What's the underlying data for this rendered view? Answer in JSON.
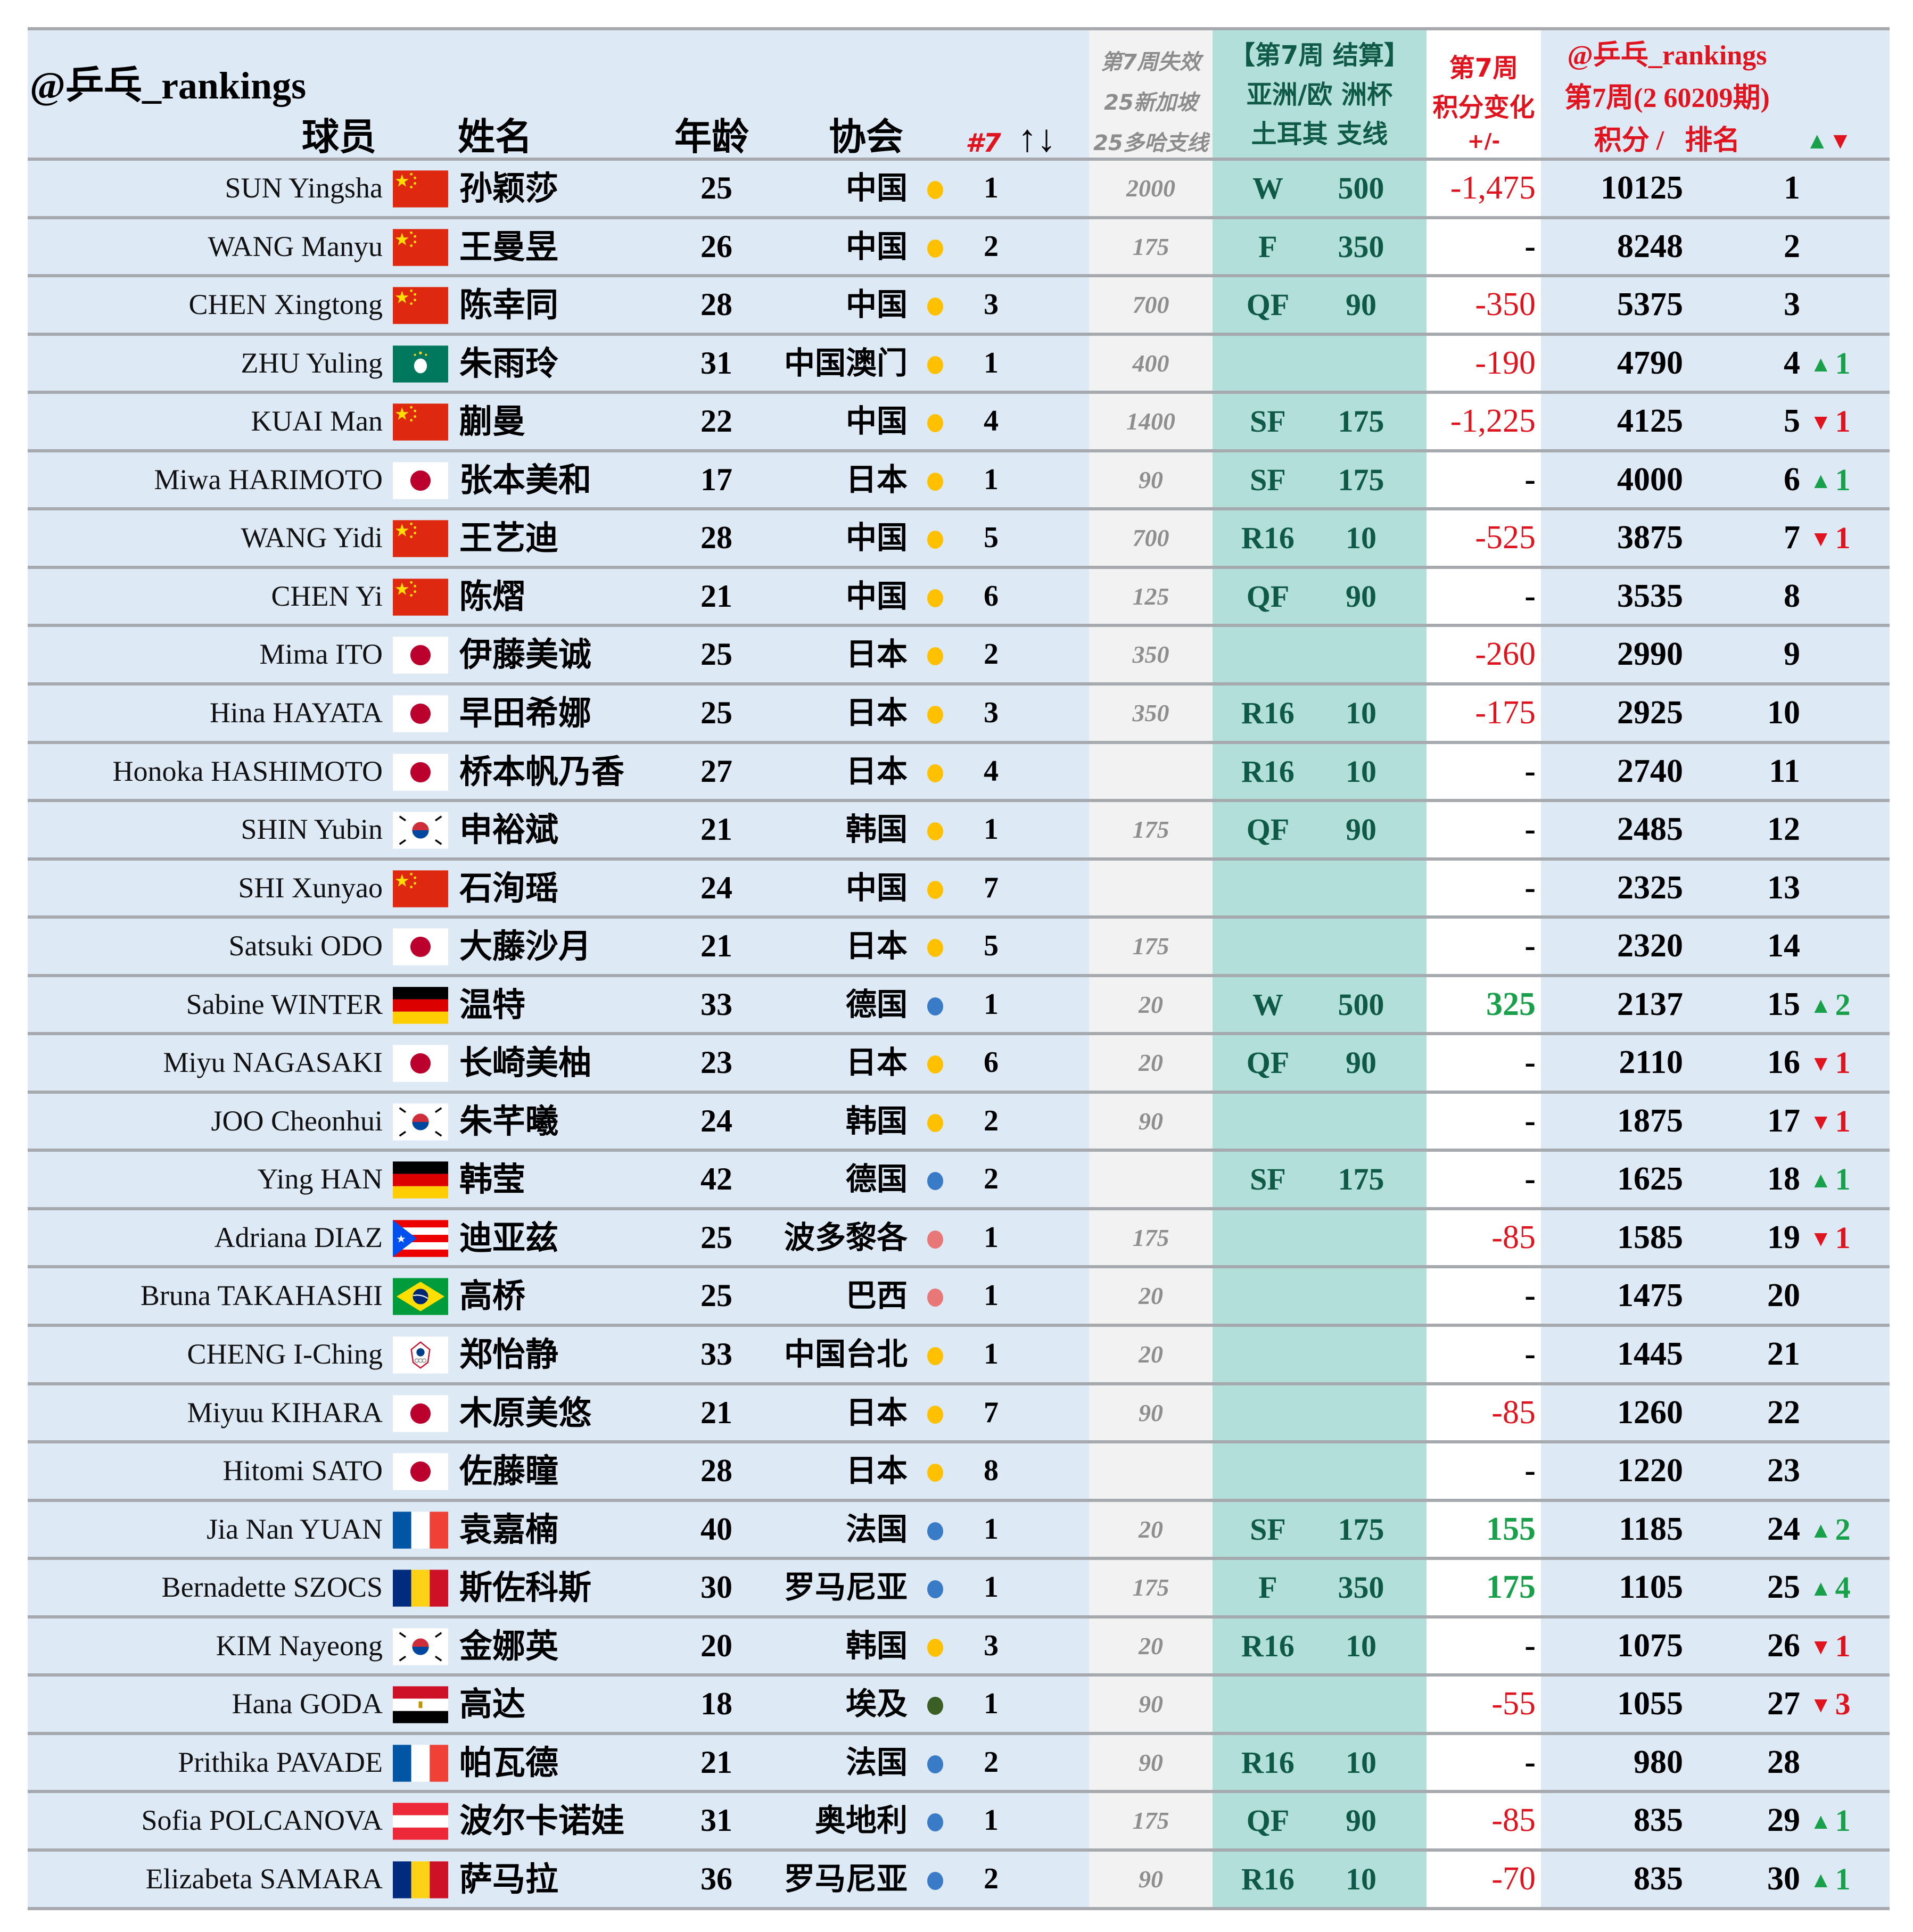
{
  "header": {
    "brand": "@乒乓_rankings",
    "col_player": "球员",
    "col_name": "姓名",
    "col_age": "年龄",
    "col_assoc": "协会",
    "col_assoc_rank": "#7",
    "sort_icon": "↑↓",
    "expiring": [
      "第7周失效",
      "25新加坡",
      "25多哈支线"
    ],
    "settlement": [
      "【第7周 结算】",
      "亚洲/欧 洲杯",
      "土耳其 支线"
    ],
    "change": [
      "第7周",
      "积分变化",
      "+/-"
    ],
    "brand2": "@乒乓_rankings",
    "period": "第7周(2 60209期)",
    "points_rank": "积分 /   排名",
    "updown": "▲▼"
  },
  "colors": {
    "asia": "#ffc000",
    "europe": "#3a7bc8",
    "americas": "#e87878",
    "africa": "#3b5e25",
    "up": "#19a04a",
    "down": "#e0141e"
  },
  "rows": [
    {
      "eng": "SUN Yingsha",
      "flag": "china",
      "cn": "孙颖莎",
      "age": "25",
      "assoc": "中国",
      "region": "asia",
      "arank": "1",
      "lost": "2000",
      "stage": "W",
      "spts": "500",
      "chg": "-1,475",
      "chg_type": "neg",
      "pts": "10125",
      "rank": "1",
      "move": "",
      "move_dir": ""
    },
    {
      "eng": "WANG Manyu",
      "flag": "china",
      "cn": "王曼昱",
      "age": "26",
      "assoc": "中国",
      "region": "asia",
      "arank": "2",
      "lost": "175",
      "stage": "F",
      "spts": "350",
      "chg": "-",
      "chg_type": "none",
      "pts": "8248",
      "rank": "2",
      "move": "",
      "move_dir": ""
    },
    {
      "eng": "CHEN Xingtong",
      "flag": "china",
      "cn": "陈幸同",
      "age": "28",
      "assoc": "中国",
      "region": "asia",
      "arank": "3",
      "lost": "700",
      "stage": "QF",
      "spts": "90",
      "chg": "-350",
      "chg_type": "neg",
      "pts": "5375",
      "rank": "3",
      "move": "",
      "move_dir": ""
    },
    {
      "eng": "ZHU Yuling",
      "flag": "macao",
      "cn": "朱雨玲",
      "age": "31",
      "assoc": "中国澳门",
      "region": "asia",
      "arank": "1",
      "lost": "400",
      "stage": "",
      "spts": "",
      "chg": "-190",
      "chg_type": "neg",
      "pts": "4790",
      "rank": "4",
      "move": "1",
      "move_dir": "up"
    },
    {
      "eng": "KUAI Man",
      "flag": "china",
      "cn": "蒯曼",
      "age": "22",
      "assoc": "中国",
      "region": "asia",
      "arank": "4",
      "lost": "1400",
      "stage": "SF",
      "spts": "175",
      "chg": "-1,225",
      "chg_type": "neg",
      "pts": "4125",
      "rank": "5",
      "move": "1",
      "move_dir": "down"
    },
    {
      "eng": "Miwa HARIMOTO",
      "flag": "japan",
      "cn": "张本美和",
      "age": "17",
      "assoc": "日本",
      "region": "asia",
      "arank": "1",
      "lost": "90",
      "stage": "SF",
      "spts": "175",
      "chg": "-",
      "chg_type": "none",
      "pts": "4000",
      "rank": "6",
      "move": "1",
      "move_dir": "up"
    },
    {
      "eng": "WANG Yidi",
      "flag": "china",
      "cn": "王艺迪",
      "age": "28",
      "assoc": "中国",
      "region": "asia",
      "arank": "5",
      "lost": "700",
      "stage": "R16",
      "spts": "10",
      "chg": "-525",
      "chg_type": "neg",
      "pts": "3875",
      "rank": "7",
      "move": "1",
      "move_dir": "down"
    },
    {
      "eng": "CHEN Yi",
      "flag": "china",
      "cn": "陈熠",
      "age": "21",
      "assoc": "中国",
      "region": "asia",
      "arank": "6",
      "lost": "125",
      "stage": "QF",
      "spts": "90",
      "chg": "-",
      "chg_type": "none",
      "pts": "3535",
      "rank": "8",
      "move": "",
      "move_dir": ""
    },
    {
      "eng": "Mima ITO",
      "flag": "japan",
      "cn": "伊藤美诚",
      "age": "25",
      "assoc": "日本",
      "region": "asia",
      "arank": "2",
      "lost": "350",
      "stage": "",
      "spts": "",
      "chg": "-260",
      "chg_type": "neg",
      "pts": "2990",
      "rank": "9",
      "move": "",
      "move_dir": ""
    },
    {
      "eng": "Hina HAYATA",
      "flag": "japan",
      "cn": "早田希娜",
      "age": "25",
      "assoc": "日本",
      "region": "asia",
      "arank": "3",
      "lost": "350",
      "stage": "R16",
      "spts": "10",
      "chg": "-175",
      "chg_type": "neg",
      "pts": "2925",
      "rank": "10",
      "move": "",
      "move_dir": ""
    },
    {
      "eng": "Honoka HASHIMOTO",
      "flag": "japan",
      "cn": "桥本帆乃香",
      "age": "27",
      "assoc": "日本",
      "region": "asia",
      "arank": "4",
      "lost": "",
      "stage": "R16",
      "spts": "10",
      "chg": "-",
      "chg_type": "none",
      "pts": "2740",
      "rank": "11",
      "move": "",
      "move_dir": ""
    },
    {
      "eng": "SHIN Yubin",
      "flag": "korea",
      "cn": "申裕斌",
      "age": "21",
      "assoc": "韩国",
      "region": "asia",
      "arank": "1",
      "lost": "175",
      "stage": "QF",
      "spts": "90",
      "chg": "-",
      "chg_type": "none",
      "pts": "2485",
      "rank": "12",
      "move": "",
      "move_dir": ""
    },
    {
      "eng": "SHI Xunyao",
      "flag": "china",
      "cn": "石洵瑶",
      "age": "24",
      "assoc": "中国",
      "region": "asia",
      "arank": "7",
      "lost": "",
      "stage": "",
      "spts": "",
      "chg": "-",
      "chg_type": "none",
      "pts": "2325",
      "rank": "13",
      "move": "",
      "move_dir": ""
    },
    {
      "eng": "Satsuki ODO",
      "flag": "japan",
      "cn": "大藤沙月",
      "age": "21",
      "assoc": "日本",
      "region": "asia",
      "arank": "5",
      "lost": "175",
      "stage": "",
      "spts": "",
      "chg": "-",
      "chg_type": "none",
      "pts": "2320",
      "rank": "14",
      "move": "",
      "move_dir": ""
    },
    {
      "eng": "Sabine WINTER",
      "flag": "germany",
      "cn": "温特",
      "age": "33",
      "assoc": "德国",
      "region": "europe",
      "arank": "1",
      "lost": "20",
      "stage": "W",
      "spts": "500",
      "chg": "325",
      "chg_type": "pos",
      "pts": "2137",
      "rank": "15",
      "move": "2",
      "move_dir": "up"
    },
    {
      "eng": "Miyu NAGASAKI",
      "flag": "japan",
      "cn": "长崎美柚",
      "age": "23",
      "assoc": "日本",
      "region": "asia",
      "arank": "6",
      "lost": "20",
      "stage": "QF",
      "spts": "90",
      "chg": "-",
      "chg_type": "none",
      "pts": "2110",
      "rank": "16",
      "move": "1",
      "move_dir": "down"
    },
    {
      "eng": "JOO Cheonhui",
      "flag": "korea",
      "cn": "朱芊曦",
      "age": "24",
      "assoc": "韩国",
      "region": "asia",
      "arank": "2",
      "lost": "90",
      "stage": "",
      "spts": "",
      "chg": "-",
      "chg_type": "none",
      "pts": "1875",
      "rank": "17",
      "move": "1",
      "move_dir": "down"
    },
    {
      "eng": "Ying HAN",
      "flag": "germany",
      "cn": "韩莹",
      "age": "42",
      "assoc": "德国",
      "region": "europe",
      "arank": "2",
      "lost": "",
      "stage": "SF",
      "spts": "175",
      "chg": "-",
      "chg_type": "none",
      "pts": "1625",
      "rank": "18",
      "move": "1",
      "move_dir": "up"
    },
    {
      "eng": "Adriana DIAZ",
      "flag": "puertorico",
      "cn": "迪亚兹",
      "age": "25",
      "assoc": "波多黎各",
      "region": "americas",
      "arank": "1",
      "lost": "175",
      "stage": "",
      "spts": "",
      "chg": "-85",
      "chg_type": "neg",
      "pts": "1585",
      "rank": "19",
      "move": "1",
      "move_dir": "down"
    },
    {
      "eng": "Bruna TAKAHASHI",
      "flag": "brazil",
      "cn": "高桥",
      "age": "25",
      "assoc": "巴西",
      "region": "americas",
      "arank": "1",
      "lost": "20",
      "stage": "",
      "spts": "",
      "chg": "-",
      "chg_type": "none",
      "pts": "1475",
      "rank": "20",
      "move": "",
      "move_dir": ""
    },
    {
      "eng": "CHENG I-Ching",
      "flag": "tpe",
      "cn": "郑怡静",
      "age": "33",
      "assoc": "中国台北",
      "region": "asia",
      "arank": "1",
      "lost": "20",
      "stage": "",
      "spts": "",
      "chg": "-",
      "chg_type": "none",
      "pts": "1445",
      "rank": "21",
      "move": "",
      "move_dir": ""
    },
    {
      "eng": "Miyuu KIHARA",
      "flag": "japan",
      "cn": "木原美悠",
      "age": "21",
      "assoc": "日本",
      "region": "asia",
      "arank": "7",
      "lost": "90",
      "stage": "",
      "spts": "",
      "chg": "-85",
      "chg_type": "neg",
      "pts": "1260",
      "rank": "22",
      "move": "",
      "move_dir": ""
    },
    {
      "eng": "Hitomi SATO",
      "flag": "japan",
      "cn": "佐藤瞳",
      "age": "28",
      "assoc": "日本",
      "region": "asia",
      "arank": "8",
      "lost": "",
      "stage": "",
      "spts": "",
      "chg": "-",
      "chg_type": "none",
      "pts": "1220",
      "rank": "23",
      "move": "",
      "move_dir": ""
    },
    {
      "eng": "Jia Nan YUAN",
      "flag": "france",
      "cn": "袁嘉楠",
      "age": "40",
      "assoc": "法国",
      "region": "europe",
      "arank": "1",
      "lost": "20",
      "stage": "SF",
      "spts": "175",
      "chg": "155",
      "chg_type": "pos",
      "pts": "1185",
      "rank": "24",
      "move": "2",
      "move_dir": "up"
    },
    {
      "eng": "Bernadette SZOCS",
      "flag": "romania",
      "cn": "斯佐科斯",
      "age": "30",
      "assoc": "罗马尼亚",
      "region": "europe",
      "arank": "1",
      "lost": "175",
      "stage": "F",
      "spts": "350",
      "chg": "175",
      "chg_type": "pos",
      "pts": "1105",
      "rank": "25",
      "move": "4",
      "move_dir": "up"
    },
    {
      "eng": "KIM Nayeong",
      "flag": "korea",
      "cn": "金娜英",
      "age": "20",
      "assoc": "韩国",
      "region": "asia",
      "arank": "3",
      "lost": "20",
      "stage": "R16",
      "spts": "10",
      "chg": "-",
      "chg_type": "none",
      "pts": "1075",
      "rank": "26",
      "move": "1",
      "move_dir": "down"
    },
    {
      "eng": "Hana GODA",
      "flag": "egypt",
      "cn": "高达",
      "age": "18",
      "assoc": "埃及",
      "region": "africa",
      "arank": "1",
      "lost": "90",
      "stage": "",
      "spts": "",
      "chg": "-55",
      "chg_type": "neg",
      "pts": "1055",
      "rank": "27",
      "move": "3",
      "move_dir": "down"
    },
    {
      "eng": "Prithika PAVADE",
      "flag": "france",
      "cn": "帕瓦德",
      "age": "21",
      "assoc": "法国",
      "region": "europe",
      "arank": "2",
      "lost": "90",
      "stage": "R16",
      "spts": "10",
      "chg": "-",
      "chg_type": "none",
      "pts": "980",
      "rank": "28",
      "move": "",
      "move_dir": ""
    },
    {
      "eng": "Sofia POLCANOVA",
      "flag": "austria",
      "cn": "波尔卡诺娃",
      "age": "31",
      "assoc": "奥地利",
      "region": "europe",
      "arank": "1",
      "lost": "175",
      "stage": "QF",
      "spts": "90",
      "chg": "-85",
      "chg_type": "neg",
      "pts": "835",
      "rank": "29",
      "move": "1",
      "move_dir": "up"
    },
    {
      "eng": "Elizabeta SAMARA",
      "flag": "romania",
      "cn": "萨马拉",
      "age": "36",
      "assoc": "罗马尼亚",
      "region": "europe",
      "arank": "2",
      "lost": "90",
      "stage": "R16",
      "spts": "10",
      "chg": "-70",
      "chg_type": "neg",
      "pts": "835",
      "rank": "30",
      "move": "1",
      "move_dir": "up"
    }
  ]
}
